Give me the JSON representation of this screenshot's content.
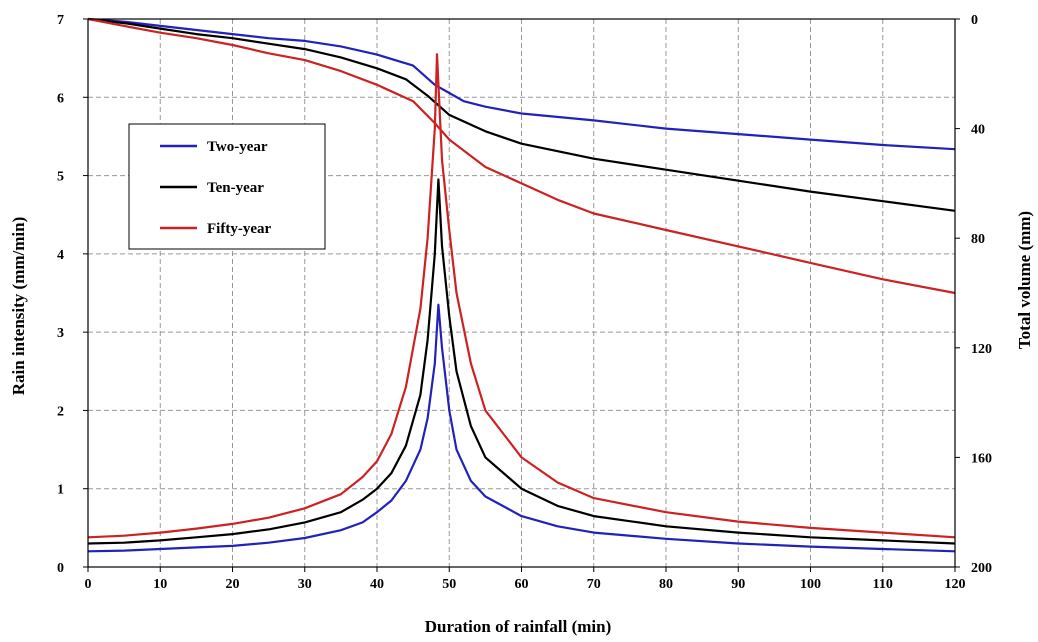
{
  "chart_data": {
    "type": "line",
    "xlabel": "Duration of rainfall (min)",
    "ylabel": "Rain intensity (mm/min)",
    "y2label": "Total volume (mm)",
    "xlim": [
      0,
      120
    ],
    "ylim": [
      0,
      7
    ],
    "y2lim": [
      0,
      200
    ],
    "y2_inverted": true,
    "xticks": [
      "0",
      "10",
      "20",
      "30",
      "40",
      "50",
      "60",
      "70",
      "80",
      "90",
      "100",
      "110",
      "120"
    ],
    "yticks": [
      "0",
      "1",
      "2",
      "3",
      "4",
      "5",
      "6",
      "7"
    ],
    "y2ticks": [
      "0",
      "40",
      "80",
      "120",
      "160",
      "200"
    ],
    "grid": true,
    "legend_placement": "upper-left",
    "series": [
      {
        "name": "Two-year",
        "color": "#2222bb",
        "intensity": [
          [
            0,
            0.2
          ],
          [
            5,
            0.21
          ],
          [
            10,
            0.23
          ],
          [
            15,
            0.25
          ],
          [
            20,
            0.27
          ],
          [
            25,
            0.31
          ],
          [
            30,
            0.37
          ],
          [
            35,
            0.47
          ],
          [
            38,
            0.57
          ],
          [
            40,
            0.7
          ],
          [
            42,
            0.85
          ],
          [
            44,
            1.1
          ],
          [
            46,
            1.5
          ],
          [
            47,
            1.9
          ],
          [
            48,
            2.6
          ],
          [
            48.5,
            3.35
          ],
          [
            49,
            2.8
          ],
          [
            50,
            2.0
          ],
          [
            51,
            1.5
          ],
          [
            53,
            1.1
          ],
          [
            55,
            0.9
          ],
          [
            60,
            0.65
          ],
          [
            65,
            0.52
          ],
          [
            70,
            0.44
          ],
          [
            80,
            0.36
          ],
          [
            90,
            0.3
          ],
          [
            100,
            0.26
          ],
          [
            110,
            0.23
          ],
          [
            120,
            0.2
          ]
        ],
        "volume": [
          [
            0,
            0
          ],
          [
            5,
            1
          ],
          [
            10,
            2.5
          ],
          [
            15,
            4
          ],
          [
            20,
            5.5
          ],
          [
            25,
            7
          ],
          [
            30,
            8
          ],
          [
            35,
            10
          ],
          [
            40,
            13
          ],
          [
            45,
            17
          ],
          [
            48,
            24
          ],
          [
            50,
            27
          ],
          [
            52,
            30
          ],
          [
            55,
            32
          ],
          [
            60,
            34.5
          ],
          [
            70,
            37
          ],
          [
            80,
            40
          ],
          [
            90,
            42
          ],
          [
            100,
            44
          ],
          [
            110,
            46
          ],
          [
            120,
            47.5
          ]
        ]
      },
      {
        "name": "Ten-year",
        "color": "#000000",
        "intensity": [
          [
            0,
            0.3
          ],
          [
            5,
            0.31
          ],
          [
            10,
            0.34
          ],
          [
            15,
            0.38
          ],
          [
            20,
            0.42
          ],
          [
            25,
            0.48
          ],
          [
            30,
            0.57
          ],
          [
            35,
            0.7
          ],
          [
            38,
            0.86
          ],
          [
            40,
            1.0
          ],
          [
            42,
            1.2
          ],
          [
            44,
            1.55
          ],
          [
            46,
            2.2
          ],
          [
            47,
            2.9
          ],
          [
            48,
            4.0
          ],
          [
            48.5,
            4.95
          ],
          [
            49,
            4.1
          ],
          [
            50,
            3.2
          ],
          [
            51,
            2.5
          ],
          [
            53,
            1.8
          ],
          [
            55,
            1.4
          ],
          [
            60,
            1.0
          ],
          [
            65,
            0.78
          ],
          [
            70,
            0.65
          ],
          [
            80,
            0.52
          ],
          [
            90,
            0.44
          ],
          [
            100,
            0.38
          ],
          [
            110,
            0.34
          ],
          [
            120,
            0.3
          ]
        ],
        "volume": [
          [
            0,
            0
          ],
          [
            5,
            1.5
          ],
          [
            10,
            3.5
          ],
          [
            15,
            5.5
          ],
          [
            20,
            7
          ],
          [
            25,
            9
          ],
          [
            30,
            11
          ],
          [
            35,
            14
          ],
          [
            40,
            18
          ],
          [
            44,
            22
          ],
          [
            47,
            28
          ],
          [
            50,
            35
          ],
          [
            55,
            41
          ],
          [
            60,
            45.5
          ],
          [
            70,
            51
          ],
          [
            80,
            55
          ],
          [
            90,
            59
          ],
          [
            100,
            63
          ],
          [
            110,
            66.5
          ],
          [
            120,
            70
          ]
        ]
      },
      {
        "name": "Fifty-year",
        "color": "#cc2222",
        "intensity": [
          [
            0,
            0.38
          ],
          [
            5,
            0.4
          ],
          [
            10,
            0.44
          ],
          [
            15,
            0.49
          ],
          [
            20,
            0.55
          ],
          [
            25,
            0.63
          ],
          [
            30,
            0.75
          ],
          [
            35,
            0.93
          ],
          [
            38,
            1.15
          ],
          [
            40,
            1.35
          ],
          [
            42,
            1.7
          ],
          [
            44,
            2.3
          ],
          [
            46,
            3.3
          ],
          [
            47,
            4.2
          ],
          [
            48,
            5.6
          ],
          [
            48.3,
            6.55
          ],
          [
            49,
            5.2
          ],
          [
            50,
            4.3
          ],
          [
            51,
            3.5
          ],
          [
            53,
            2.6
          ],
          [
            55,
            2.0
          ],
          [
            60,
            1.4
          ],
          [
            65,
            1.08
          ],
          [
            70,
            0.88
          ],
          [
            80,
            0.7
          ],
          [
            90,
            0.58
          ],
          [
            100,
            0.5
          ],
          [
            110,
            0.44
          ],
          [
            120,
            0.38
          ]
        ],
        "volume": [
          [
            0,
            0
          ],
          [
            5,
            2.5
          ],
          [
            10,
            5
          ],
          [
            15,
            7
          ],
          [
            20,
            9.5
          ],
          [
            25,
            12.5
          ],
          [
            30,
            15
          ],
          [
            35,
            19
          ],
          [
            40,
            24
          ],
          [
            45,
            30
          ],
          [
            48,
            38
          ],
          [
            50,
            44
          ],
          [
            55,
            54
          ],
          [
            60,
            60
          ],
          [
            65,
            66
          ],
          [
            70,
            71
          ],
          [
            80,
            77
          ],
          [
            90,
            83
          ],
          [
            100,
            89
          ],
          [
            110,
            95
          ],
          [
            120,
            100
          ]
        ]
      }
    ]
  }
}
